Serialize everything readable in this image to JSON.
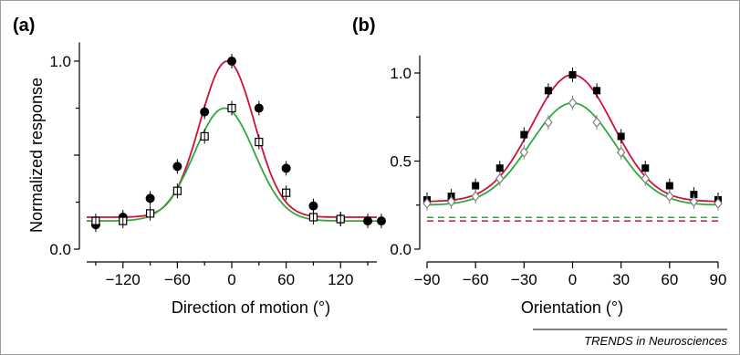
{
  "colors": {
    "red_curve": "#d0103a",
    "green_curve": "#2eaa3c",
    "filled_marker": "#000000",
    "open_marker_a": "#000000",
    "open_marker_b": "#808080",
    "red_dashed": "#d0103a",
    "green_dashed": "#2eaa3c"
  },
  "source": "TRENDS in Neurosciences",
  "chart_data": [
    {
      "panel_label": "(a)",
      "type": "line",
      "xlabel": "Direction of motion (°)",
      "ylabel": "Normalized response",
      "xlim": [
        -160,
        160
      ],
      "ylim": [
        0,
        1.1
      ],
      "xticks": [
        -120,
        -60,
        0,
        60,
        120
      ],
      "xtick_labels": [
        "−120",
        "−60",
        "0",
        "60",
        "120"
      ],
      "yticks": [
        0,
        0.5,
        1.0
      ],
      "ytick_labels": [
        "0.0",
        "",
        "1.0"
      ],
      "grid": false,
      "series": [
        {
          "marker": "filled-circle",
          "x": [
            -150,
            -120,
            -90,
            -60,
            -30,
            0,
            30,
            60,
            90,
            120,
            150,
            165
          ],
          "y": [
            0.13,
            0.17,
            0.27,
            0.44,
            0.73,
            1.0,
            0.75,
            0.43,
            0.23,
            0.16,
            0.15,
            0.15
          ],
          "fit": {
            "baseline": 0.17,
            "amplitude": 0.83,
            "center": -5,
            "sigma": 30,
            "color": "red_curve"
          }
        },
        {
          "marker": "open-square",
          "x": [
            -150,
            -120,
            -90,
            -60,
            -30,
            0,
            30,
            60,
            90,
            120
          ],
          "y": [
            0.15,
            0.15,
            0.19,
            0.31,
            0.6,
            0.75,
            0.57,
            0.3,
            0.17,
            0.16
          ],
          "fit": {
            "baseline": 0.15,
            "amplitude": 0.6,
            "center": -8,
            "sigma": 33,
            "color": "green_curve"
          }
        }
      ]
    },
    {
      "panel_label": "(b)",
      "type": "line",
      "xlabel": "Orientation (°)",
      "ylabel": "",
      "xlim": [
        -90,
        90
      ],
      "ylim": [
        0,
        1.1
      ],
      "xticks": [
        -90,
        -60,
        -30,
        0,
        30,
        60,
        90
      ],
      "xtick_labels": [
        "−90",
        "−60",
        "−30",
        "0",
        "30",
        "60",
        "90"
      ],
      "yticks": [
        0,
        0.5,
        1.0
      ],
      "ytick_labels": [
        "0.0",
        "0.5",
        "1.0"
      ],
      "grid": false,
      "series": [
        {
          "marker": "filled-square",
          "x": [
            -90,
            -75,
            -60,
            -45,
            -30,
            -15,
            0,
            15,
            30,
            45,
            60,
            75,
            90
          ],
          "y": [
            0.28,
            0.3,
            0.36,
            0.46,
            0.65,
            0.9,
            0.99,
            0.9,
            0.64,
            0.46,
            0.36,
            0.31,
            0.28
          ],
          "fit": {
            "baseline": 0.27,
            "amplitude": 0.72,
            "center": 0,
            "sigma": 25,
            "color": "red_curve"
          }
        },
        {
          "marker": "open-diamond",
          "x": [
            -90,
            -75,
            -60,
            -45,
            -30,
            -15,
            0,
            15,
            30,
            45,
            60,
            75,
            90
          ],
          "y": [
            0.26,
            0.27,
            0.3,
            0.4,
            0.55,
            0.72,
            0.83,
            0.72,
            0.55,
            0.4,
            0.3,
            0.27,
            0.26
          ],
          "fit": {
            "baseline": 0.25,
            "amplitude": 0.58,
            "center": 0,
            "sigma": 26,
            "color": "green_curve"
          }
        }
      ],
      "reference_lines": [
        {
          "y": 0.18,
          "style": "dashed",
          "color": "green_dashed"
        },
        {
          "y": 0.16,
          "style": "dashed",
          "color": "red_dashed"
        }
      ]
    }
  ]
}
